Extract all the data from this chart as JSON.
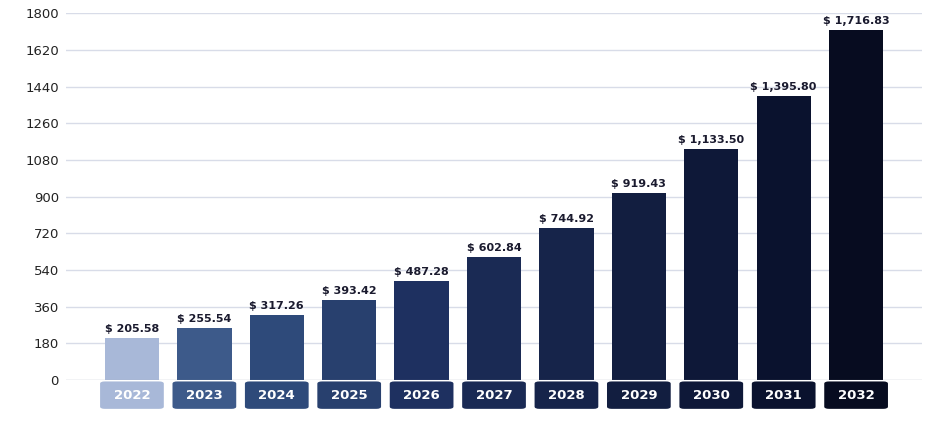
{
  "categories": [
    "2022",
    "2023",
    "2024",
    "2025",
    "2026",
    "2027",
    "2028",
    "2029",
    "2030",
    "2031",
    "2032"
  ],
  "values": [
    205.58,
    255.54,
    317.26,
    393.42,
    487.28,
    602.84,
    744.92,
    919.43,
    1133.5,
    1395.8,
    1716.83
  ],
  "labels": [
    "$ 205.58",
    "$ 255.54",
    "$ 317.26",
    "$ 393.42",
    "$ 487.28",
    "$ 602.84",
    "$ 744.92",
    "$ 919.43",
    "$ 1,133.50",
    "$ 1,395.80",
    "$ 1,716.83"
  ],
  "bar_colors": [
    "#a8b8d8",
    "#3d5a8a",
    "#2e4a7a",
    "#28406e",
    "#1e3060",
    "#1a2a54",
    "#16244a",
    "#121e40",
    "#0e1838",
    "#0a122e",
    "#070c20"
  ],
  "ylim": [
    0,
    1800
  ],
  "yticks": [
    0,
    180,
    360,
    540,
    720,
    900,
    1080,
    1260,
    1440,
    1620,
    1800
  ],
  "background_color": "#ffffff",
  "plot_bg_color": "#ffffff",
  "grid_color": "#d8dce8",
  "bar_width": 0.75,
  "label_color": "#1a1a2e",
  "label_fontsize": 8.0,
  "ytick_fontsize": 9.5,
  "xtick_box_fontsize": 9.5
}
